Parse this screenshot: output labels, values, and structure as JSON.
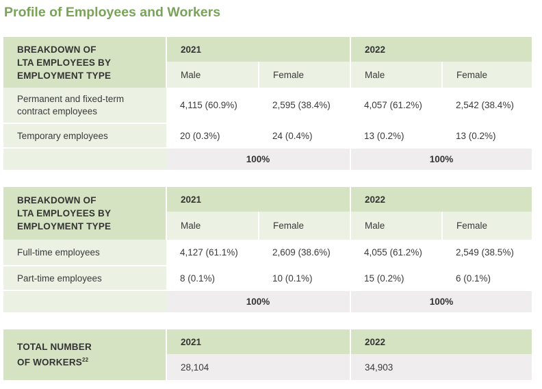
{
  "title": "Profile of Employees and Workers",
  "table1": {
    "header": [
      "BREAKDOWN OF",
      "LTA EMPLOYEES BY",
      "EMPLOYMENT TYPE"
    ],
    "year_2021": "2021",
    "year_2022": "2022",
    "male": "Male",
    "female": "Female",
    "rows": [
      {
        "label_line1": "Permanent and fixed-term",
        "label_line2": "contract employees",
        "m2021": "4,115 (60.9%)",
        "f2021": "2,595 (38.4%)",
        "m2022": "4,057 (61.2%)",
        "f2022": "2,542 (38.4%)"
      },
      {
        "label": "Temporary employees",
        "m2021": "20 (0.3%)",
        "f2021": "24 (0.4%)",
        "m2022": "13 (0.2%)",
        "f2022": "13 (0.2%)"
      }
    ],
    "total_2021": "100%",
    "total_2022": "100%"
  },
  "table2": {
    "header": [
      "BREAKDOWN OF",
      "LTA EMPLOYEES BY",
      "EMPLOYMENT TYPE"
    ],
    "year_2021": "2021",
    "year_2022": "2022",
    "male": "Male",
    "female": "Female",
    "rows": [
      {
        "label": "Full-time employees",
        "m2021": "4,127 (61.1%)",
        "f2021": "2,609 (38.6%)",
        "m2022": "4,055 (61.2%)",
        "f2022": "2,549 (38.5%)"
      },
      {
        "label": "Part-time employees",
        "m2021": "8 (0.1%)",
        "f2021": "10 (0.1%)",
        "m2022": "15 (0.2%)",
        "f2022": "6 (0.1%)"
      }
    ],
    "total_2021": "100%",
    "total_2022": "100%"
  },
  "table3": {
    "header_line1": "TOTAL NUMBER",
    "header_line2": "OF WORKERS",
    "footnote": "22",
    "year_2021": "2021",
    "year_2022": "2022",
    "value_2021": "28,104",
    "value_2022": "34,903"
  }
}
